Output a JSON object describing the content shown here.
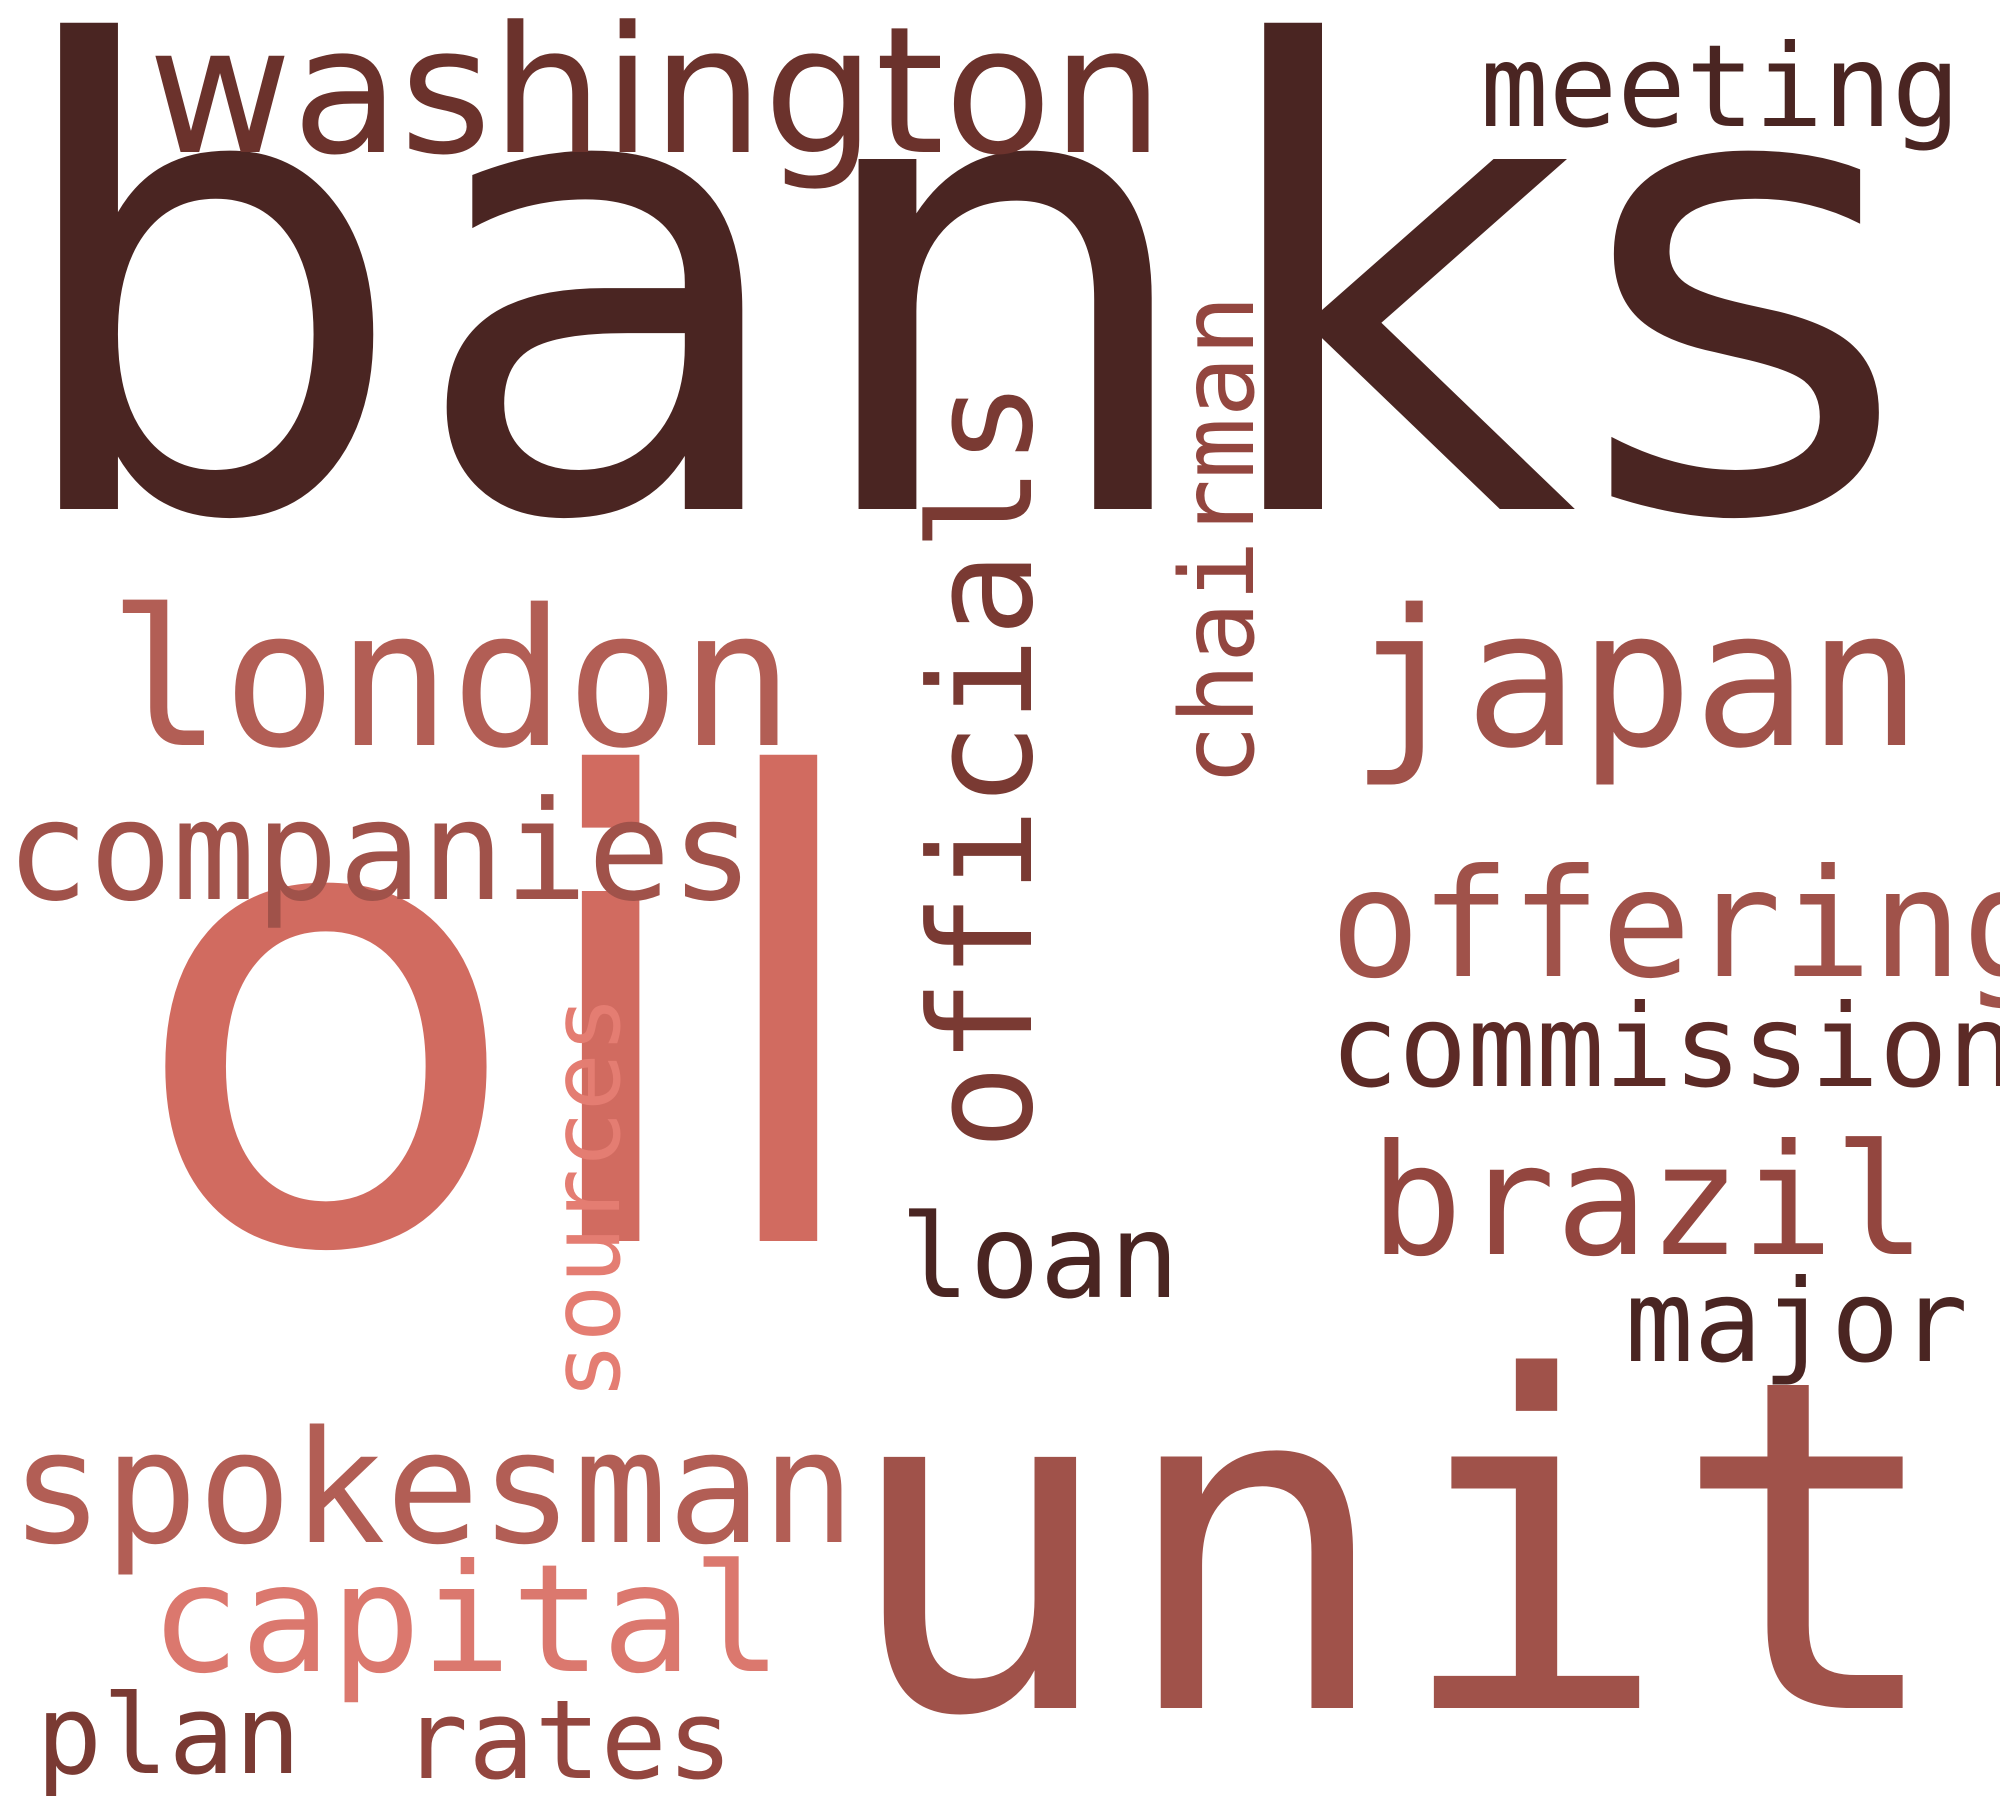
{
  "words": {
    "banks": {
      "text": "banks",
      "color": "#4a2522"
    },
    "oil": {
      "text": "oil",
      "color": "#d16b60"
    },
    "unit": {
      "text": "unit",
      "color": "#a0524a"
    },
    "washington": {
      "text": "washington",
      "color": "#6b322c"
    },
    "meeting": {
      "text": "meeting",
      "color": "#4a2522"
    },
    "london": {
      "text": "london",
      "color": "#b25e55"
    },
    "japan": {
      "text": "japan",
      "color": "#a0524a"
    },
    "companies": {
      "text": "companies",
      "color": "#a0524a"
    },
    "offering": {
      "text": "offering",
      "color": "#a0524a"
    },
    "commission": {
      "text": "commission",
      "color": "#5c2a26"
    },
    "brazil": {
      "text": "brazil",
      "color": "#93463f"
    },
    "major": {
      "text": "major",
      "color": "#4a2522"
    },
    "loan": {
      "text": "loan",
      "color": "#4a2522"
    },
    "spokesman": {
      "text": "spokesman",
      "color": "#b25e55"
    },
    "capital": {
      "text": "capital",
      "color": "#db786e"
    },
    "plan": {
      "text": "plan",
      "color": "#7a3a33"
    },
    "rates": {
      "text": "rates",
      "color": "#93463f"
    },
    "officials": {
      "text": "officials",
      "color": "#7a3a33"
    },
    "chairman": {
      "text": "chairman",
      "color": "#93463f"
    },
    "sources": {
      "text": "sources",
      "color": "#e47d72"
    }
  }
}
